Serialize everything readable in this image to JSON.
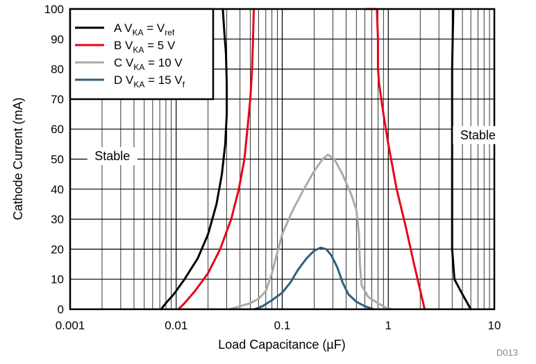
{
  "chart_data": {
    "type": "line",
    "xlabel": "Load Capacitance (µF)",
    "ylabel": "Cathode Current (mA)",
    "xscale": "log",
    "xlim": [
      0.001,
      10
    ],
    "ylim": [
      0,
      100
    ],
    "x_ticks": [
      "0.001",
      "0.01",
      "0.1",
      "1",
      "10"
    ],
    "y_ticks": [
      "0",
      "10",
      "20",
      "30",
      "40",
      "50",
      "60",
      "70",
      "80",
      "90",
      "100"
    ],
    "grid": true,
    "legend_position": "top-left",
    "figure_id": "D013",
    "annotations": [
      {
        "text": "Stable",
        "x": 0.0025,
        "y": 51
      },
      {
        "text": "Stable",
        "x": 7.0,
        "y": 58
      }
    ],
    "series": [
      {
        "legend": {
          "prefix": "A V",
          "sub": "KA",
          "mid": " = V",
          "sub2": "ref"
        },
        "color": "#000000",
        "segments": [
          [
            [
              0.0072,
              0
            ],
            [
              0.008,
              2
            ],
            [
              0.0095,
              5
            ],
            [
              0.012,
              10
            ],
            [
              0.016,
              17
            ],
            [
              0.02,
              25
            ],
            [
              0.024,
              35
            ],
            [
              0.027,
              45
            ],
            [
              0.029,
              55
            ],
            [
              0.03,
              65
            ],
            [
              0.03,
              75
            ],
            [
              0.0295,
              85
            ],
            [
              0.0285,
              92
            ],
            [
              0.0275,
              100
            ]
          ],
          [
            [
              4.1,
              100
            ],
            [
              4.05,
              90
            ],
            [
              4.0,
              80
            ],
            [
              4.0,
              60
            ],
            [
              4.0,
              40
            ],
            [
              4.0,
              20
            ],
            [
              4.2,
              10
            ],
            [
              5.0,
              5
            ],
            [
              6.0,
              0
            ]
          ]
        ]
      },
      {
        "legend": {
          "prefix": "B V",
          "sub": "KA",
          "mid": " = 5 V",
          "sub2": ""
        },
        "color": "#e8001c",
        "segments": [
          [
            [
              0.0105,
              0
            ],
            [
              0.012,
              2
            ],
            [
              0.015,
              6
            ],
            [
              0.02,
              12
            ],
            [
              0.026,
              20
            ],
            [
              0.033,
              30
            ],
            [
              0.039,
              40
            ],
            [
              0.044,
              50
            ],
            [
              0.047,
              60
            ],
            [
              0.05,
              70
            ],
            [
              0.052,
              80
            ],
            [
              0.053,
              90
            ],
            [
              0.054,
              100
            ]
          ],
          [
            [
              0.62,
              100
            ],
            [
              0.78,
              100
            ],
            [
              0.8,
              90
            ],
            [
              0.8,
              80
            ],
            [
              0.82,
              75
            ],
            [
              0.9,
              65
            ],
            [
              1.0,
              55
            ],
            [
              1.2,
              40
            ],
            [
              1.45,
              28
            ],
            [
              1.75,
              15
            ],
            [
              2.2,
              0
            ]
          ]
        ]
      },
      {
        "legend": {
          "prefix": "C V",
          "sub": "KA",
          "mid": " = 10 V",
          "sub2": ""
        },
        "color": "#aaaaaa",
        "segments": [
          [
            [
              0.032,
              0
            ],
            [
              0.04,
              1
            ],
            [
              0.05,
              2
            ],
            [
              0.06,
              3.5
            ],
            [
              0.07,
              6
            ],
            [
              0.08,
              12
            ],
            [
              0.09,
              19
            ],
            [
              0.1,
              25
            ],
            [
              0.115,
              30
            ],
            [
              0.13,
              34
            ],
            [
              0.16,
              40
            ],
            [
              0.2,
              46
            ],
            [
              0.24,
              50
            ],
            [
              0.27,
              51.5
            ],
            [
              0.31,
              50
            ],
            [
              0.37,
              45
            ],
            [
              0.45,
              38
            ],
            [
              0.5,
              33
            ],
            [
              0.53,
              25
            ],
            [
              0.54,
              15
            ],
            [
              0.56,
              8
            ],
            [
              0.65,
              4
            ],
            [
              0.8,
              2
            ],
            [
              0.95,
              0.5
            ],
            [
              1.08,
              0
            ]
          ]
        ]
      },
      {
        "legend": {
          "prefix": "D V",
          "sub": "KA",
          "mid": " = 15 V",
          "sub2": "f"
        },
        "color": "#2f5f7a",
        "segments": [
          [
            [
              0.055,
              0
            ],
            [
              0.065,
              1
            ],
            [
              0.08,
              3
            ],
            [
              0.1,
              5.5
            ],
            [
              0.12,
              9
            ],
            [
              0.14,
              13
            ],
            [
              0.17,
              17
            ],
            [
              0.2,
              19.5
            ],
            [
              0.23,
              20.5
            ],
            [
              0.26,
              20
            ],
            [
              0.29,
              18
            ],
            [
              0.33,
              14
            ],
            [
              0.37,
              9
            ],
            [
              0.42,
              5
            ],
            [
              0.5,
              2.5
            ],
            [
              0.6,
              1
            ],
            [
              0.73,
              0
            ]
          ]
        ]
      }
    ]
  }
}
